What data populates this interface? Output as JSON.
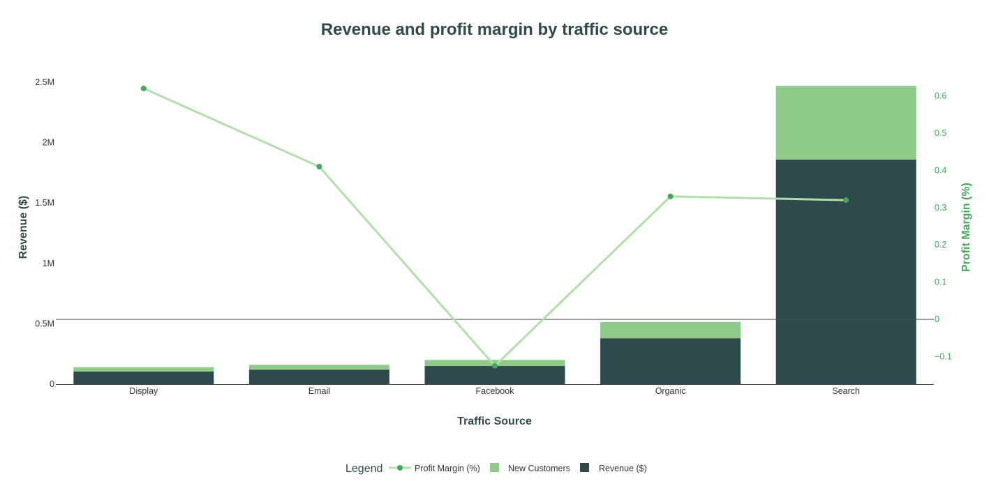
{
  "chart_data": {
    "type": "bar",
    "title": "Revenue and profit margin by traffic source",
    "xlabel": "Traffic Source",
    "ylabel": "Revenue ($)",
    "y2label": "Profit Margin (%)",
    "categories": [
      "Display",
      "Email",
      "Facebook",
      "Organic",
      "Search"
    ],
    "ylim": [
      0,
      2500000
    ],
    "y2lim": [
      -0.175,
      0.64
    ],
    "yticks": [
      {
        "value": 0,
        "label": "0"
      },
      {
        "value": 500000,
        "label": "0.5M"
      },
      {
        "value": 1000000,
        "label": "1M"
      },
      {
        "value": 1500000,
        "label": "1.5M"
      },
      {
        "value": 2000000,
        "label": "2M"
      },
      {
        "value": 2500000,
        "label": "2.5M"
      }
    ],
    "y2ticks": [
      {
        "value": -0.1,
        "label": "−0.1"
      },
      {
        "value": 0,
        "label": "0"
      },
      {
        "value": 0.1,
        "label": "0.1"
      },
      {
        "value": 0.2,
        "label": "0.2"
      },
      {
        "value": 0.3,
        "label": "0.3"
      },
      {
        "value": 0.4,
        "label": "0.4"
      },
      {
        "value": 0.5,
        "label": "0.5"
      },
      {
        "value": 0.6,
        "label": "0.6"
      }
    ],
    "stacked": true,
    "series": [
      {
        "name": "Revenue ($)",
        "type": "bar",
        "axis": "left",
        "color": "#2f4a4c",
        "values": [
          105000,
          120000,
          150000,
          380000,
          1860000
        ]
      },
      {
        "name": "New Customers",
        "type": "bar",
        "axis": "left",
        "color": "#8ecb8a",
        "values": [
          35000,
          40000,
          50000,
          135000,
          610000
        ]
      },
      {
        "name": "Profit Margin (%)",
        "type": "line",
        "axis": "right",
        "color": "#b2dfa9",
        "marker_color": "#43a85a",
        "values": [
          0.62,
          0.41,
          -0.125,
          0.33,
          0.32
        ]
      }
    ],
    "legend": {
      "title": "Legend",
      "placement": "bottom-center",
      "items": [
        "Profit Margin (%)",
        "New Customers",
        "Revenue ($)"
      ]
    },
    "grid": false,
    "zero_line_right_axis": true
  }
}
